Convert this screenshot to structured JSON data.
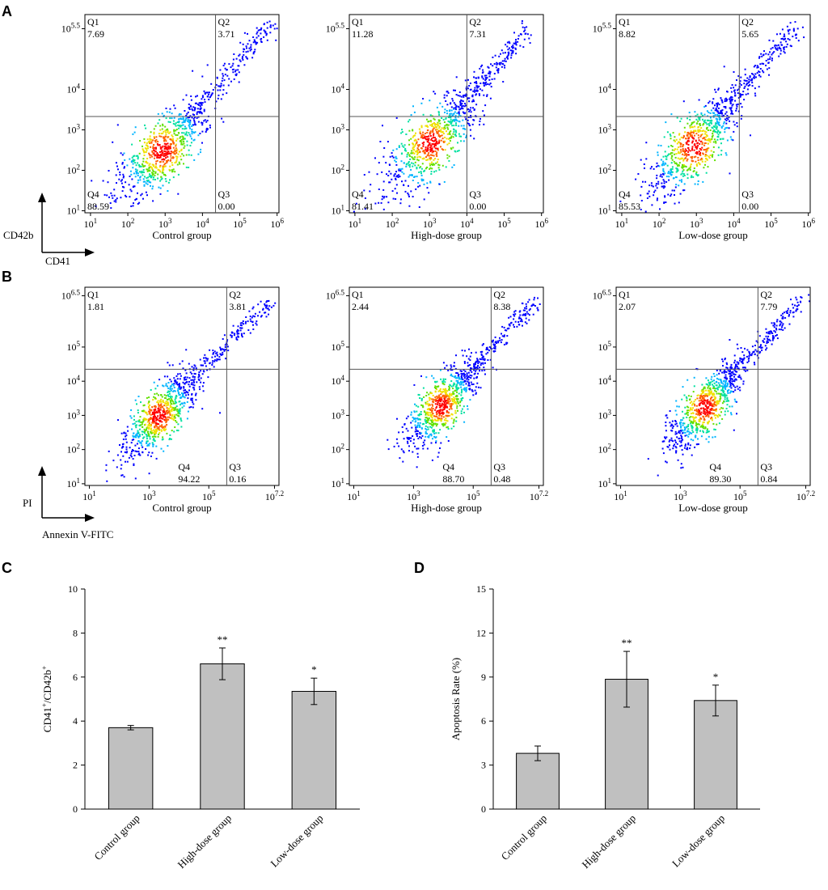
{
  "panel_letters": {
    "a": "A",
    "b": "B",
    "c": "C",
    "d": "D"
  },
  "axis_arrows": {
    "a": {
      "y": "CD42b",
      "x": "CD41"
    },
    "b": {
      "y": "PI",
      "x": "Annexin V-FITC"
    }
  },
  "colors": {
    "bar_fill": "#c0c0c0",
    "density": [
      "#0000ff",
      "#00b4ff",
      "#00e0a0",
      "#60e000",
      "#f0e000",
      "#ff6000",
      "#ff0000"
    ]
  },
  "chart_data": [
    {
      "type": "scatter",
      "title": "Control group",
      "xlabel": "Control group",
      "ylabel": "CD42b",
      "x_axis_label": "CD41",
      "x_ticks": [
        "10^1",
        "10^2",
        "10^3",
        "10^4",
        "10^5",
        "10^6"
      ],
      "y_ticks": [
        "10^1",
        "10^2",
        "10^3",
        "10^4",
        "10^5.5"
      ],
      "xlim_log": [
        0.85,
        6.05
      ],
      "ylim_log": [
        0.95,
        5.85
      ],
      "gate": {
        "x_log": 4.35,
        "y_log": 3.33
      },
      "quadrants": {
        "Q1": "7.69",
        "Q2": "3.71",
        "Q3": "0.00",
        "Q4": "88.59"
      },
      "cloud": {
        "cx": 2.9,
        "cy": 2.5,
        "tail_end_x": 5.9,
        "tail_end_y": 5.7
      }
    },
    {
      "type": "scatter",
      "title": "High-dose group",
      "xlabel": "High-dose group",
      "x_ticks": [
        "10^1",
        "10^2",
        "10^3",
        "10^4",
        "10^5",
        "10^6"
      ],
      "y_ticks": [
        "10^1",
        "10^2",
        "10^3",
        "10^4",
        "10^5.5"
      ],
      "xlim_log": [
        0.85,
        6.05
      ],
      "ylim_log": [
        0.95,
        5.85
      ],
      "gate": {
        "x_log": 4.0,
        "y_log": 3.33
      },
      "quadrants": {
        "Q1": "11.28",
        "Q2": "7.31",
        "Q3": "0.00",
        "Q4": "81.41"
      },
      "cloud": {
        "cx": 3.0,
        "cy": 2.7,
        "tail_end_x": 5.6,
        "tail_end_y": 5.5
      }
    },
    {
      "type": "scatter",
      "title": "Low-dose group",
      "xlabel": "Low-dose group",
      "x_ticks": [
        "10^1",
        "10^2",
        "10^3",
        "10^4",
        "10^5",
        "10^6"
      ],
      "y_ticks": [
        "10^1",
        "10^2",
        "10^3",
        "10^4",
        "10^5.5"
      ],
      "xlim_log": [
        0.85,
        6.05
      ],
      "ylim_log": [
        0.95,
        5.85
      ],
      "gate": {
        "x_log": 4.15,
        "y_log": 3.33
      },
      "quadrants": {
        "Q1": "8.82",
        "Q2": "5.65",
        "Q3": "0.00",
        "Q4": "85.53"
      },
      "cloud": {
        "cx": 2.9,
        "cy": 2.6,
        "tail_end_x": 5.7,
        "tail_end_y": 5.6
      }
    },
    {
      "type": "scatter",
      "title": "Control group",
      "xlabel": "Control group",
      "ylabel": "PI",
      "x_axis_label": "Annexin V-FITC",
      "x_ticks": [
        "10^1",
        "10^3",
        "10^5",
        "10^7.2"
      ],
      "y_ticks": [
        "10^1",
        "10^2",
        "10^3",
        "10^4",
        "10^5",
        "10^6.5"
      ],
      "xlim_log": [
        0.85,
        7.35
      ],
      "ylim_log": [
        0.95,
        6.75
      ],
      "gate": {
        "x_log": 5.6,
        "y_log": 4.35
      },
      "quadrants": {
        "Q1": "1.81",
        "Q2": "3.81",
        "Q3": "0.16",
        "Q4": "94.22"
      },
      "cloud": {
        "cx": 3.3,
        "cy": 3.0,
        "tail_end_x": 7.1,
        "tail_end_y": 6.4
      }
    },
    {
      "type": "scatter",
      "title": "High-dose group",
      "xlabel": "High-dose group",
      "x_ticks": [
        "10^1",
        "10^3",
        "10^5",
        "10^7.2"
      ],
      "y_ticks": [
        "10^1",
        "10^2",
        "10^3",
        "10^4",
        "10^5",
        "10^6.5"
      ],
      "xlim_log": [
        0.85,
        7.35
      ],
      "ylim_log": [
        0.95,
        6.75
      ],
      "gate": {
        "x_log": 5.6,
        "y_log": 4.35
      },
      "quadrants": {
        "Q1": "2.44",
        "Q2": "8.38",
        "Q3": "0.48",
        "Q4": "88.70"
      },
      "cloud": {
        "cx": 3.9,
        "cy": 3.3,
        "tail_end_x": 7.1,
        "tail_end_y": 6.4
      }
    },
    {
      "type": "scatter",
      "title": "Low-dose group",
      "xlabel": "Low-dose group",
      "x_ticks": [
        "10^1",
        "10^3",
        "10^5",
        "10^7.2"
      ],
      "y_ticks": [
        "10^1",
        "10^2",
        "10^3",
        "10^4",
        "10^5",
        "10^6.5"
      ],
      "xlim_log": [
        0.85,
        7.35
      ],
      "ylim_log": [
        0.95,
        6.75
      ],
      "gate": {
        "x_log": 5.6,
        "y_log": 4.35
      },
      "quadrants": {
        "Q1": "2.07",
        "Q2": "7.79",
        "Q3": "0.84",
        "Q4": "89.30"
      },
      "cloud": {
        "cx": 3.8,
        "cy": 3.25,
        "tail_end_x": 7.1,
        "tail_end_y": 6.4
      }
    },
    {
      "type": "bar",
      "categories": [
        "Control group",
        "High-dose group",
        "Low-dose group"
      ],
      "values": [
        3.7,
        6.6,
        5.35
      ],
      "errors": [
        0.1,
        0.72,
        0.6
      ],
      "significance": [
        "",
        "**",
        "*"
      ],
      "ylabel_main": "CD41",
      "ylabel_sup1": "+",
      "ylabel_mid": "/CD42b",
      "ylabel_sup2": "+",
      "ylim": [
        0,
        10
      ],
      "yticks": [
        0,
        2,
        4,
        6,
        8,
        10
      ]
    },
    {
      "type": "bar",
      "categories": [
        "Control group",
        "High-dose group",
        "Low-dose group"
      ],
      "values": [
        3.8,
        8.85,
        7.4
      ],
      "errors": [
        0.5,
        1.9,
        1.05
      ],
      "significance": [
        "",
        "**",
        "*"
      ],
      "ylabel": "Apoptosis Rate (%)",
      "ylim": [
        0,
        15
      ],
      "yticks": [
        0,
        3,
        6,
        9,
        12,
        15
      ]
    }
  ]
}
